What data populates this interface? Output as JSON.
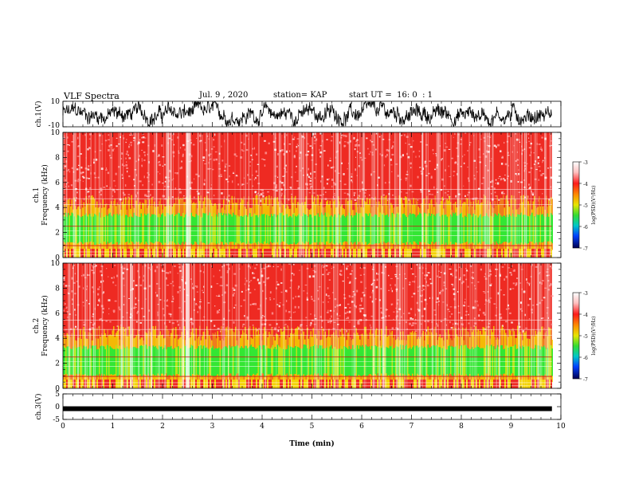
{
  "header": {
    "title": "VLF Spectra",
    "date": "Jul. 9 , 2020",
    "station": "station= KAP",
    "start": "start UT =  16: 0  : 1"
  },
  "colors": {
    "spectrum_bg": "#ee2a22",
    "spectrum_band": "#33e633",
    "spectrum_edge": "#f4d200",
    "spectrum_white": "#ffffff"
  },
  "chart_data": [
    {
      "type": "line",
      "panel": "ch1_waveform",
      "ylabel": "ch.1(V)",
      "ylim": [
        -10,
        10
      ],
      "yticks": [
        "10",
        "-10"
      ],
      "x_range_min": [
        0,
        9.82
      ],
      "note_values": "noisy waveform, roughly between -9 V and +9 V"
    },
    {
      "type": "heatmap",
      "panel": "ch1_spectrogram",
      "ylabel": "ch.1\nFrequency (kHz)",
      "ylim": [
        0,
        10
      ],
      "yticks": [
        "0",
        "2",
        "4",
        "6",
        "8",
        "10"
      ],
      "green_band_khz": [
        1.0,
        3.6
      ],
      "colorbar": {
        "label": "log(PSD)(V²/Hz)",
        "range": [
          -7,
          -3
        ],
        "ticks": [
          "-3",
          "-4",
          "-5",
          "-6",
          "-7"
        ]
      }
    },
    {
      "type": "heatmap",
      "panel": "ch2_spectrogram",
      "ylabel": "ch.2\nFrequency (kHz)",
      "ylim": [
        0,
        10
      ],
      "yticks": [
        "0",
        "2",
        "4",
        "6",
        "8",
        "10"
      ],
      "green_band_khz": [
        0.9,
        3.5
      ],
      "colorbar": {
        "label": "log(PSD)(V²/Hz)",
        "range": [
          -7,
          -3
        ],
        "ticks": [
          "-3",
          "-4",
          "-5",
          "-6",
          "-7"
        ]
      }
    },
    {
      "type": "line",
      "panel": "ch3_waveform",
      "ylabel": "ch.3(V)",
      "ylim": [
        -5,
        5
      ],
      "yticks": [
        "5",
        "0",
        "-5"
      ],
      "level_v": -0.8
    }
  ],
  "xaxis": {
    "label": "Time (min)",
    "range": [
      0,
      10
    ],
    "ticks": [
      "0",
      "1",
      "2",
      "3",
      "4",
      "5",
      "6",
      "7",
      "8",
      "9",
      "10"
    ]
  }
}
